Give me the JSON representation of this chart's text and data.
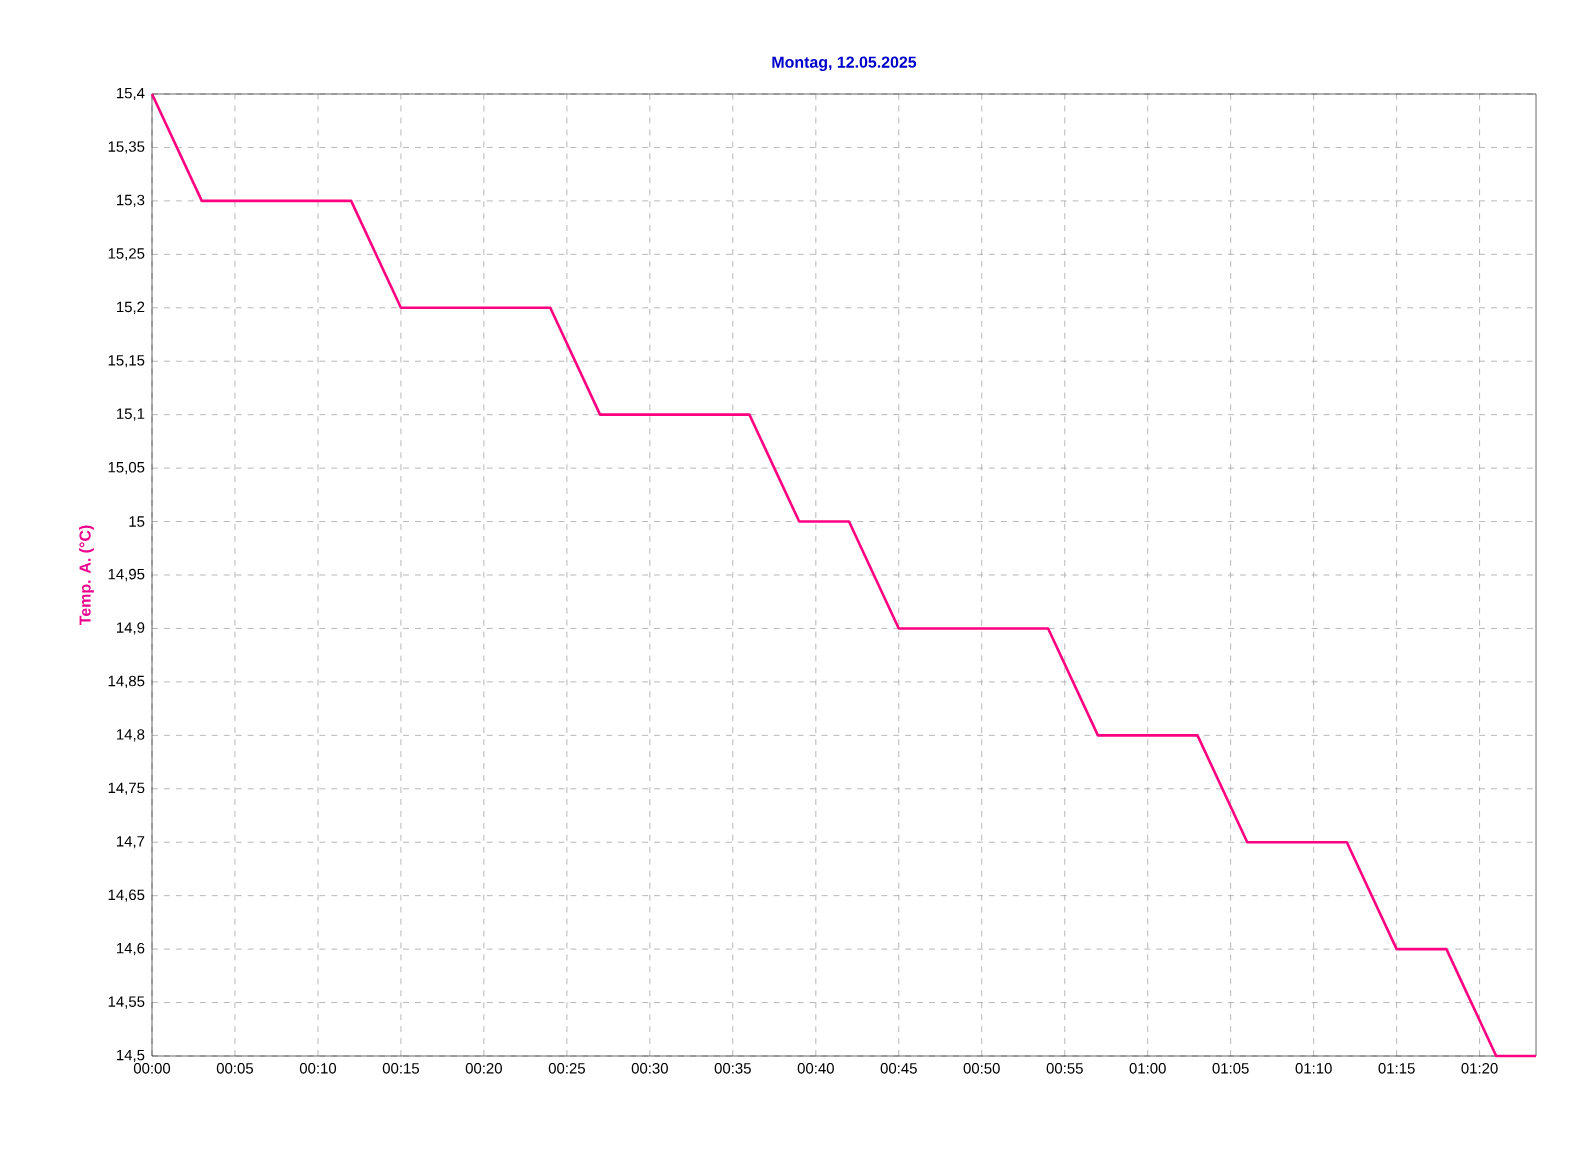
{
  "chart_data": {
    "type": "line",
    "title": "Montag, 12.05.2025",
    "ylabel": "Temp. A. (°C)",
    "series": [
      {
        "color": "#ff0080",
        "x": [
          0,
          0.05,
          0.2,
          0.25,
          0.4,
          0.45,
          0.6,
          0.65,
          0.7,
          0.75,
          0.9,
          0.95,
          1.05,
          1.1,
          1.2,
          1.25,
          1.3,
          1.35,
          1.39
        ],
        "values": [
          15.4,
          15.3,
          15.3,
          15.2,
          15.2,
          15.1,
          15.1,
          15.0,
          15.0,
          14.9,
          14.9,
          14.8,
          14.8,
          14.7,
          14.7,
          14.6,
          14.6,
          14.5,
          14.5
        ]
      }
    ],
    "xlim": [
      0,
      1.39
    ],
    "ylim": [
      14.5,
      15.4
    ],
    "xticks": [
      {
        "value": 0,
        "label": "00:00"
      },
      {
        "value": 0.0833,
        "label": "00:05"
      },
      {
        "value": 0.1667,
        "label": "00:10"
      },
      {
        "value": 0.25,
        "label": "00:15"
      },
      {
        "value": 0.3333,
        "label": "00:20"
      },
      {
        "value": 0.4167,
        "label": "00:25"
      },
      {
        "value": 0.5,
        "label": "00:30"
      },
      {
        "value": 0.5833,
        "label": "00:35"
      },
      {
        "value": 0.6667,
        "label": "00:40"
      },
      {
        "value": 0.75,
        "label": "00:45"
      },
      {
        "value": 0.8333,
        "label": "00:50"
      },
      {
        "value": 0.9167,
        "label": "00:55"
      },
      {
        "value": 1,
        "label": "01:00"
      },
      {
        "value": 1.0833,
        "label": "01:05"
      },
      {
        "value": 1.1667,
        "label": "01:10"
      },
      {
        "value": 1.25,
        "label": "01:15"
      },
      {
        "value": 1.3333,
        "label": "01:20"
      }
    ],
    "yticks": [
      {
        "value": 14.5,
        "label": "14,5"
      },
      {
        "value": 14.55,
        "label": "14,55"
      },
      {
        "value": 14.6,
        "label": "14,6"
      },
      {
        "value": 14.65,
        "label": "14,65"
      },
      {
        "value": 14.7,
        "label": "14,7"
      },
      {
        "value": 14.75,
        "label": "14,75"
      },
      {
        "value": 14.8,
        "label": "14,8"
      },
      {
        "value": 14.85,
        "label": "14,85"
      },
      {
        "value": 14.9,
        "label": "14,9"
      },
      {
        "value": 14.95,
        "label": "14,95"
      },
      {
        "value": 15,
        "label": "15"
      },
      {
        "value": 15.05,
        "label": "15,05"
      },
      {
        "value": 15.1,
        "label": "15,1"
      },
      {
        "value": 15.15,
        "label": "15,15"
      },
      {
        "value": 15.2,
        "label": "15,2"
      },
      {
        "value": 15.25,
        "label": "15,25"
      },
      {
        "value": 15.3,
        "label": "15,3"
      },
      {
        "value": 15.35,
        "label": "15,35"
      },
      {
        "value": 15.4,
        "label": "15,4"
      }
    ],
    "grid": true,
    "marker": "none",
    "line_style": "solid"
  }
}
